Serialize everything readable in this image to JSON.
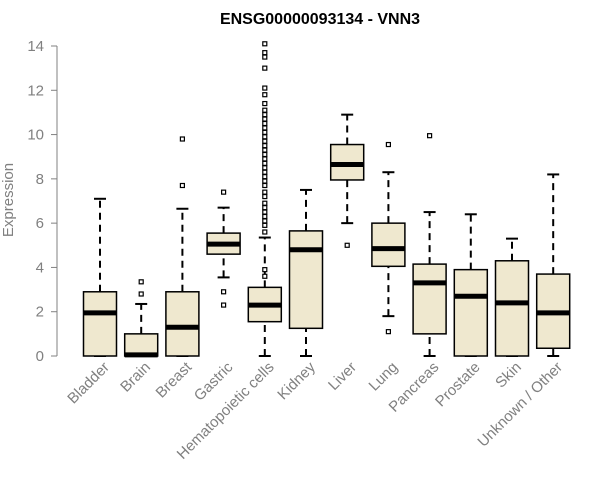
{
  "chart_data": {
    "type": "boxplot",
    "title": "ENSG00000093134 - VNN3",
    "xlabel": "",
    "ylabel": "Expression",
    "ylim": [
      0,
      14
    ],
    "yticks": [
      0,
      2,
      4,
      6,
      8,
      10,
      12,
      14
    ],
    "colors": {
      "box_fill": "#efe8cf",
      "stroke": "#000000",
      "axis": "#808080"
    },
    "categories": [
      "Bladder",
      "Brain",
      "Breast",
      "Gastric",
      "Hematopoietic cells",
      "Kidney",
      "Liver",
      "Lung",
      "Pancreas",
      "Prostate",
      "Skin",
      "Unknown / Other"
    ],
    "boxes": [
      {
        "name": "Bladder",
        "min": 0,
        "q1": 0,
        "median": 1.95,
        "q3": 2.9,
        "max": 7.1,
        "outliers": []
      },
      {
        "name": "Brain",
        "min": 0,
        "q1": 0,
        "median": 0.05,
        "q3": 1.0,
        "max": 2.35,
        "outliers": [
          2.8,
          3.35
        ]
      },
      {
        "name": "Breast",
        "min": 0,
        "q1": 0,
        "median": 1.3,
        "q3": 2.9,
        "max": 6.65,
        "outliers": [
          7.7,
          9.8
        ]
      },
      {
        "name": "Gastric",
        "min": 3.55,
        "q1": 4.6,
        "median": 5.05,
        "q3": 5.55,
        "max": 6.7,
        "outliers": [
          2.3,
          2.9,
          7.4
        ]
      },
      {
        "name": "Hematopoietic cells",
        "min": 0,
        "q1": 1.55,
        "median": 2.3,
        "q3": 3.1,
        "max": 5.35,
        "outliers": [
          3.6,
          3.9,
          5.6,
          5.9,
          6.1,
          6.3,
          6.5,
          6.7,
          6.9,
          7.2,
          7.4,
          7.7,
          7.9,
          8.1,
          8.3,
          8.5,
          8.7,
          8.9,
          9.1,
          9.3,
          9.5,
          9.7,
          9.9,
          10.1,
          10.3,
          10.5,
          10.7,
          10.9,
          11.1,
          11.4,
          11.8,
          12.1,
          13.0,
          13.5,
          13.7,
          14.1
        ]
      },
      {
        "name": "Kidney",
        "min": 0,
        "q1": 1.25,
        "median": 4.8,
        "q3": 5.65,
        "max": 7.5,
        "outliers": []
      },
      {
        "name": "Liver",
        "min": 6.0,
        "q1": 7.95,
        "median": 8.65,
        "q3": 9.55,
        "max": 10.9,
        "outliers": [
          5.0
        ]
      },
      {
        "name": "Lung",
        "min": 1.8,
        "q1": 4.05,
        "median": 4.85,
        "q3": 6.0,
        "max": 8.3,
        "outliers": [
          1.1,
          9.55
        ]
      },
      {
        "name": "Pancreas",
        "min": 0,
        "q1": 1.0,
        "median": 3.3,
        "q3": 4.15,
        "max": 6.5,
        "outliers": [
          9.95
        ]
      },
      {
        "name": "Prostate",
        "min": 0,
        "q1": 0,
        "median": 2.7,
        "q3": 3.9,
        "max": 6.4,
        "outliers": []
      },
      {
        "name": "Skin",
        "min": 0,
        "q1": 0,
        "median": 2.4,
        "q3": 4.3,
        "max": 5.3,
        "outliers": []
      },
      {
        "name": "Unknown / Other",
        "min": 0,
        "q1": 0.35,
        "median": 1.95,
        "q3": 3.7,
        "max": 8.2,
        "outliers": []
      }
    ]
  }
}
